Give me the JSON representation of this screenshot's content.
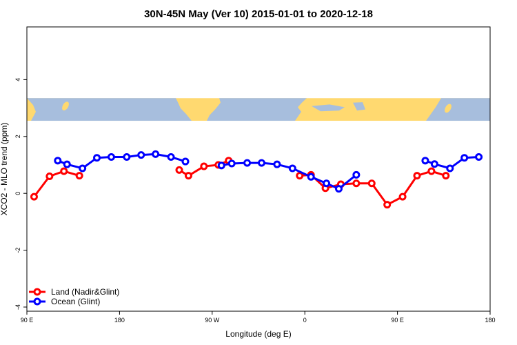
{
  "chart_data": {
    "type": "line",
    "title": "30N-45N May (Ver 10)   2015-01-01 to 2020-12-18",
    "xlabel": "Longitude (deg E)",
    "ylabel": "XCO2 - MLO trend (ppm)",
    "xlim": [
      90,
      540
    ],
    "ylim": [
      -4,
      6
    ],
    "x_ticks": [
      {
        "value": 90,
        "label": "90 E"
      },
      {
        "value": 180,
        "label": "180"
      },
      {
        "value": 270,
        "label": "90 W"
      },
      {
        "value": 360,
        "label": "0"
      },
      {
        "value": 450,
        "label": "90 E"
      },
      {
        "value": 540,
        "label": "180"
      }
    ],
    "y_ticks": [
      {
        "value": -4,
        "label": "-4"
      },
      {
        "value": -2,
        "label": "-2"
      },
      {
        "value": 0,
        "label": "0"
      },
      {
        "value": 2,
        "label": "2"
      },
      {
        "value": 4,
        "label": "4"
      }
    ],
    "map_band": {
      "ymin": 2.55,
      "ymax": 3.35
    },
    "legend_position": "bottom-left",
    "series": [
      {
        "name": "Land (Nadir&Glint)",
        "color": "#ff0000",
        "segments": [
          [
            [
              97,
              -0.12
            ],
            [
              112,
              0.6
            ],
            [
              126,
              0.78
            ],
            [
              141,
              0.62
            ]
          ],
          [
            [
              238,
              0.82
            ],
            [
              247,
              0.62
            ],
            [
              262,
              0.95
            ],
            [
              276,
              1.0
            ],
            [
              286,
              1.15
            ]
          ],
          [
            [
              355,
              0.62
            ],
            [
              366,
              0.65
            ],
            [
              380,
              0.18
            ],
            [
              395,
              0.32
            ],
            [
              410,
              0.35
            ],
            [
              425,
              0.35
            ],
            [
              440,
              -0.4
            ],
            [
              455,
              -0.12
            ],
            [
              469,
              0.62
            ],
            [
              483,
              0.78
            ],
            [
              497,
              0.62
            ]
          ]
        ]
      },
      {
        "name": "Ocean (Glint)",
        "color": "#0000ff",
        "segments": [
          [
            [
              120,
              1.15
            ],
            [
              129,
              1.02
            ],
            [
              144,
              0.88
            ],
            [
              158,
              1.25
            ],
            [
              172,
              1.28
            ],
            [
              187,
              1.28
            ],
            [
              201,
              1.35
            ],
            [
              215,
              1.38
            ],
            [
              230,
              1.28
            ],
            [
              244,
              1.12
            ]
          ],
          [
            [
              279,
              0.98
            ],
            [
              289,
              1.05
            ],
            [
              304,
              1.07
            ],
            [
              318,
              1.07
            ],
            [
              333,
              1.02
            ],
            [
              348,
              0.88
            ],
            [
              366,
              0.58
            ],
            [
              381,
              0.35
            ],
            [
              393,
              0.16
            ],
            [
              410,
              0.65
            ]
          ],
          [
            [
              477,
              1.15
            ],
            [
              486,
              1.03
            ],
            [
              501,
              0.88
            ],
            [
              515,
              1.25
            ],
            [
              529,
              1.28
            ]
          ]
        ]
      }
    ]
  }
}
